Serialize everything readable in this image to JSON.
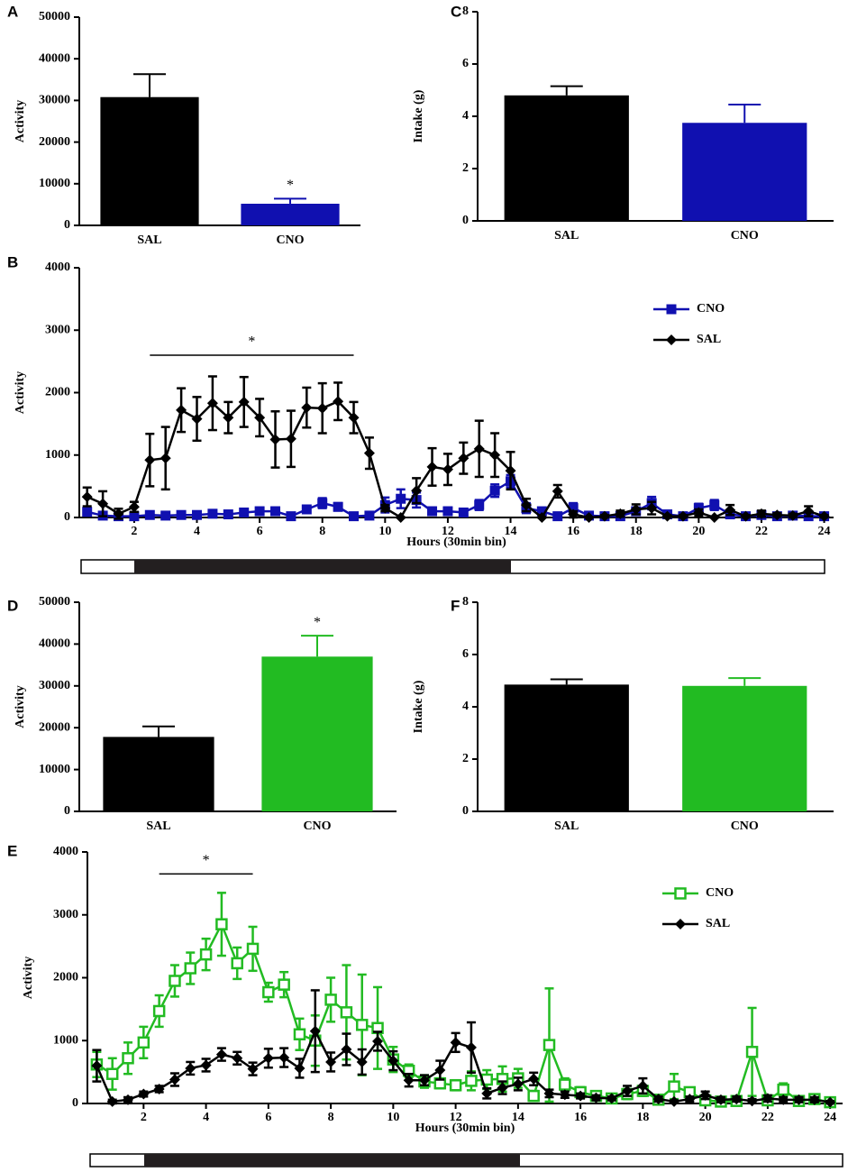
{
  "chart_data": [
    {
      "type": "bar",
      "panel": "A",
      "ylabel": "Activity",
      "categories": [
        "SAL",
        "CNO"
      ],
      "values": [
        30800,
        5200
      ],
      "errors": [
        5500,
        1200
      ],
      "colors": [
        "#000000",
        "#1010b0"
      ],
      "ylim": [
        0,
        50000
      ],
      "yticks": [
        0,
        10000,
        20000,
        30000,
        40000,
        50000
      ],
      "annotations": [
        {
          "text": "*",
          "category": "CNO"
        }
      ]
    },
    {
      "type": "bar",
      "panel": "C",
      "ylabel": "Intake (g)",
      "categories": [
        "SAL",
        "CNO"
      ],
      "values": [
        4.8,
        3.75
      ],
      "errors": [
        0.35,
        0.7
      ],
      "colors": [
        "#000000",
        "#1010b0"
      ],
      "ylim": [
        0,
        8
      ],
      "yticks": [
        0,
        2,
        4,
        6,
        8
      ]
    },
    {
      "type": "line",
      "panel": "B",
      "ylabel": "Activity",
      "xlabel": "Hours (30min bin)",
      "legend": "upper right",
      "x": [
        0.5,
        1,
        1.5,
        2,
        2.5,
        3,
        3.5,
        4,
        4.5,
        5,
        5.5,
        6,
        6.5,
        7,
        7.5,
        8,
        8.5,
        9,
        9.5,
        10,
        10.5,
        11,
        11.5,
        12,
        12.5,
        13,
        13.5,
        14,
        14.5,
        15,
        15.5,
        16,
        16.5,
        17,
        17.5,
        18,
        18.5,
        19,
        19.5,
        20,
        20.5,
        21,
        21.5,
        22,
        22.5,
        23,
        23.5,
        24
      ],
      "series": [
        {
          "name": "CNO",
          "color": "#1010b0",
          "marker": "square",
          "values": [
            90,
            30,
            20,
            20,
            40,
            30,
            40,
            40,
            60,
            50,
            80,
            100,
            100,
            20,
            130,
            230,
            170,
            20,
            30,
            200,
            300,
            280,
            100,
            100,
            80,
            200,
            430,
            580,
            150,
            100,
            20,
            150,
            30,
            20,
            20,
            100,
            230,
            50,
            20,
            150,
            200,
            50,
            20,
            40,
            20,
            30,
            20,
            20
          ],
          "errors": [
            60,
            30,
            20,
            20,
            30,
            20,
            30,
            30,
            40,
            30,
            50,
            60,
            60,
            20,
            60,
            80,
            60,
            20,
            20,
            120,
            150,
            120,
            60,
            60,
            50,
            80,
            100,
            100,
            80,
            50,
            20,
            80,
            30,
            20,
            20,
            60,
            100,
            40,
            20,
            70,
            80,
            40,
            20,
            30,
            20,
            20,
            20,
            20
          ]
        },
        {
          "name": "SAL",
          "color": "#000000",
          "marker": "diamond",
          "values": [
            330,
            220,
            60,
            170,
            920,
            950,
            1720,
            1580,
            1830,
            1600,
            1850,
            1600,
            1250,
            1260,
            1760,
            1750,
            1860,
            1600,
            1030,
            150,
            0,
            430,
            810,
            770,
            950,
            1100,
            1000,
            750,
            200,
            0,
            420,
            50,
            0,
            20,
            60,
            130,
            150,
            20,
            20,
            80,
            0,
            120,
            20,
            60,
            40,
            30,
            100,
            20
          ],
          "errors": [
            150,
            200,
            80,
            80,
            420,
            500,
            350,
            350,
            430,
            250,
            400,
            300,
            450,
            450,
            320,
            400,
            300,
            250,
            250,
            50,
            0,
            200,
            300,
            250,
            250,
            450,
            350,
            300,
            100,
            0,
            100,
            50,
            0,
            20,
            50,
            80,
            100,
            20,
            20,
            50,
            0,
            80,
            20,
            50,
            30,
            30,
            80,
            20
          ]
        }
      ],
      "xlim": [
        0.25,
        24.3
      ],
      "xticks": [
        2,
        4,
        6,
        8,
        10,
        12,
        14,
        16,
        18,
        20,
        22,
        24
      ],
      "ylim": [
        0,
        4000
      ],
      "yticks": [
        0,
        1000,
        2000,
        3000,
        4000
      ],
      "significance": {
        "label": "*",
        "x": [
          2.5,
          9
        ],
        "y": 2600
      }
    },
    {
      "type": "bar",
      "panel": "D",
      "ylabel": "Activity",
      "categories": [
        "SAL",
        "CNO"
      ],
      "values": [
        17800,
        37000
      ],
      "errors": [
        2500,
        5000
      ],
      "colors": [
        "#000000",
        "#22bb22"
      ],
      "ylim": [
        0,
        50000
      ],
      "yticks": [
        0,
        10000,
        20000,
        30000,
        40000,
        50000
      ],
      "annotations": [
        {
          "text": "*",
          "category": "CNO"
        }
      ]
    },
    {
      "type": "bar",
      "panel": "F",
      "ylabel": "Intake (g)",
      "categories": [
        "SAL",
        "CNO"
      ],
      "values": [
        4.85,
        4.8
      ],
      "errors": [
        0.2,
        0.3
      ],
      "colors": [
        "#000000",
        "#22bb22"
      ],
      "ylim": [
        0,
        8
      ],
      "yticks": [
        0,
        2,
        4,
        6,
        8
      ]
    },
    {
      "type": "line",
      "panel": "E",
      "ylabel": "Activity",
      "xlabel": "Hours (30min bin)",
      "legend": "upper right",
      "x": [
        0.5,
        1,
        1.5,
        2,
        2.5,
        3,
        3.5,
        4,
        4.5,
        5,
        5.5,
        6,
        6.5,
        7,
        7.5,
        8,
        8.5,
        9,
        9.5,
        10,
        10.5,
        11,
        11.5,
        12,
        12.5,
        13,
        13.5,
        14,
        14.5,
        15,
        15.5,
        16,
        16.5,
        17,
        17.5,
        18,
        18.5,
        19,
        19.5,
        20,
        20.5,
        21,
        21.5,
        22,
        22.5,
        23,
        23.5,
        24
      ],
      "series": [
        {
          "name": "CNO",
          "color": "#22bb22",
          "marker": "open-square",
          "values": [
            620,
            470,
            720,
            970,
            1470,
            1950,
            2150,
            2370,
            2850,
            2230,
            2460,
            1770,
            1890,
            1100,
            1000,
            1650,
            1450,
            1250,
            1200,
            700,
            520,
            350,
            320,
            290,
            360,
            380,
            390,
            400,
            120,
            930,
            300,
            180,
            120,
            80,
            150,
            200,
            60,
            270,
            180,
            50,
            30,
            40,
            820,
            50,
            220,
            40,
            70,
            20
          ],
          "errors": [
            200,
            250,
            250,
            250,
            250,
            250,
            250,
            250,
            500,
            250,
            350,
            150,
            200,
            250,
            400,
            350,
            750,
            800,
            650,
            200,
            100,
            100,
            80,
            80,
            150,
            150,
            200,
            150,
            80,
            900,
            100,
            80,
            60,
            50,
            80,
            80,
            40,
            200,
            60,
            30,
            20,
            30,
            700,
            40,
            100,
            30,
            40,
            20
          ]
        },
        {
          "name": "SAL",
          "color": "#000000",
          "marker": "diamond",
          "values": [
            600,
            30,
            60,
            150,
            230,
            380,
            560,
            610,
            780,
            720,
            550,
            720,
            730,
            560,
            1150,
            660,
            860,
            660,
            990,
            680,
            370,
            370,
            530,
            970,
            890,
            160,
            250,
            310,
            390,
            160,
            140,
            120,
            90,
            80,
            200,
            280,
            70,
            30,
            70,
            130,
            60,
            70,
            40,
            80,
            60,
            60,
            60,
            20
          ],
          "errors": [
            250,
            30,
            40,
            40,
            50,
            100,
            100,
            100,
            100,
            100,
            100,
            150,
            150,
            150,
            650,
            150,
            250,
            200,
            150,
            150,
            100,
            80,
            150,
            150,
            400,
            80,
            100,
            100,
            100,
            60,
            50,
            40,
            40,
            30,
            80,
            120,
            40,
            20,
            40,
            60,
            40,
            40,
            30,
            50,
            40,
            40,
            40,
            20
          ]
        }
      ],
      "xlim": [
        0.2,
        24.4
      ],
      "xticks": [
        2,
        4,
        6,
        8,
        10,
        12,
        14,
        16,
        18,
        20,
        22,
        24
      ],
      "ylim": [
        0,
        4000
      ],
      "yticks": [
        0,
        1000,
        2000,
        3000,
        4000
      ],
      "significance": {
        "label": "*",
        "x": [
          2.5,
          5.5
        ],
        "y": 3650
      }
    }
  ]
}
